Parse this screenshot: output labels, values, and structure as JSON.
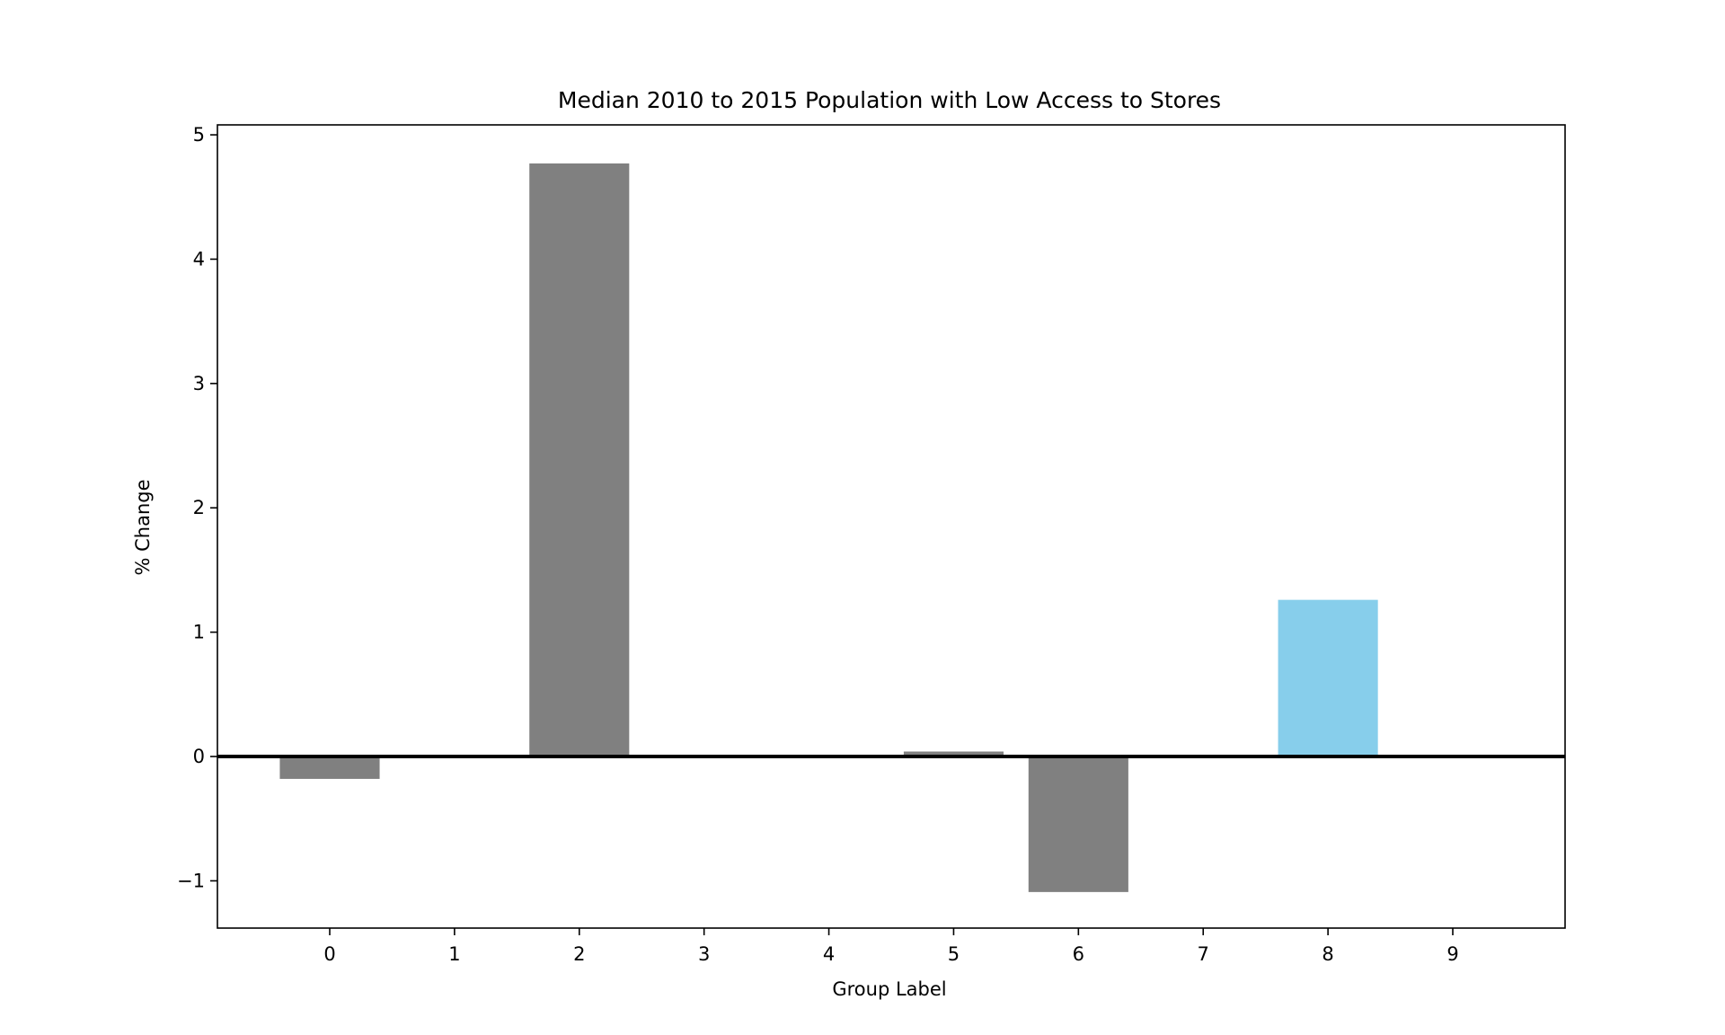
{
  "chart_data": {
    "type": "bar",
    "title": "Median 2010 to 2015 Population with Low Access to Stores",
    "xlabel": "Group Label",
    "ylabel": "% Change",
    "categories": [
      "0",
      "1",
      "2",
      "3",
      "4",
      "5",
      "6",
      "7",
      "8",
      "9"
    ],
    "values": [
      -0.18,
      0,
      4.77,
      0,
      0,
      0.04,
      -1.09,
      0,
      1.26,
      0
    ],
    "bar_colors": [
      "#808080",
      "#808080",
      "#808080",
      "#808080",
      "#808080",
      "#808080",
      "#808080",
      "#808080",
      "#87ceeb",
      "#808080"
    ],
    "ylim": [
      -1.38,
      5.08
    ],
    "yticks": [
      -1,
      0,
      1,
      2,
      3,
      4,
      5
    ],
    "ytick_labels": [
      "−1",
      "0",
      "1",
      "2",
      "3",
      "4",
      "5"
    ],
    "zero_line": true,
    "grid": false,
    "legend": "none"
  }
}
